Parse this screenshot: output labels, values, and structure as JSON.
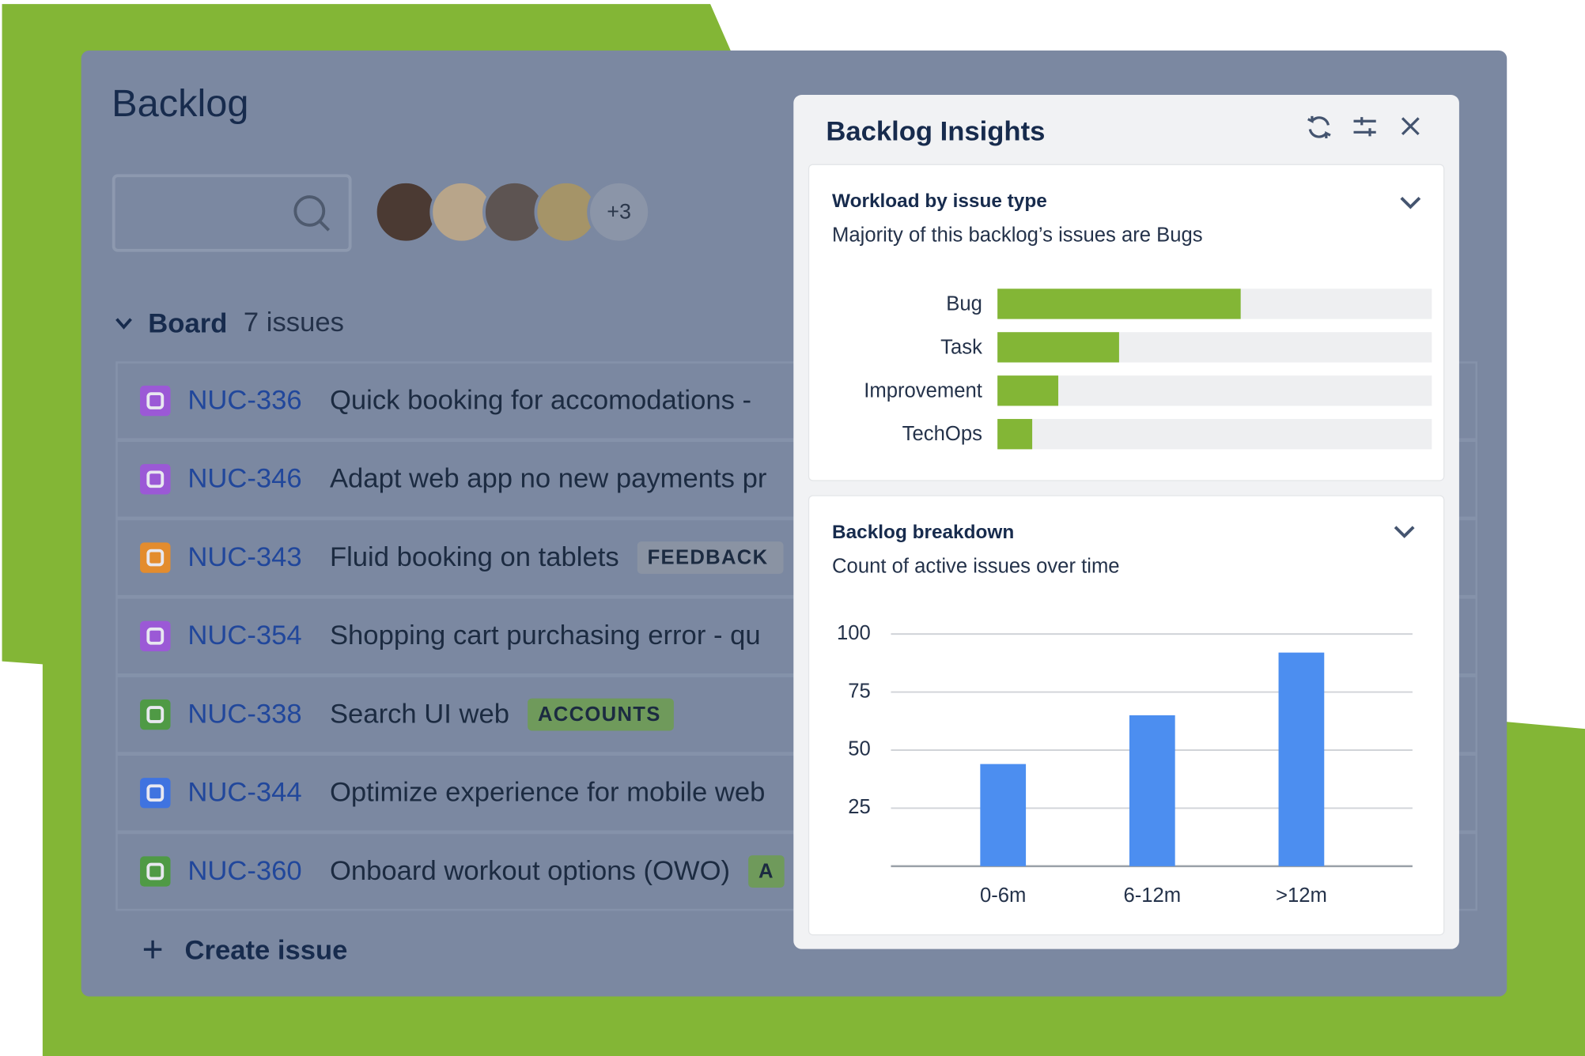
{
  "backlog": {
    "title": "Backlog",
    "avatars_more": "+3",
    "board": {
      "label": "Board",
      "count": "7 issues"
    },
    "issues": [
      {
        "key": "NUC-336",
        "summary": "Quick booking for accomodations -",
        "icon_color": "#9b59d6"
      },
      {
        "key": "NUC-346",
        "summary": "Adapt web app no new payments pr",
        "icon_color": "#9b59d6"
      },
      {
        "key": "NUC-343",
        "summary": "Fluid booking on tablets",
        "tag": "FEEDBACK",
        "tag_color": "#8a93a3",
        "icon_color": "#e38c2e"
      },
      {
        "key": "NUC-354",
        "summary": "Shopping cart purchasing error - qu",
        "icon_color": "#9b59d6"
      },
      {
        "key": "NUC-338",
        "summary": "Search UI web",
        "tag": "ACCOUNTS",
        "tag_color": "#6f9a5b",
        "icon_color": "#4f9a45"
      },
      {
        "key": "NUC-344",
        "summary": "Optimize experience for mobile web",
        "icon_color": "#3f73e0"
      },
      {
        "key": "NUC-360",
        "summary": "Onboard workout options (OWO)",
        "tag": "A",
        "tag_color": "#6f9a5b",
        "icon_color": "#4f9a45"
      }
    ],
    "create": "Create issue"
  },
  "insights": {
    "title": "Backlog Insights"
  },
  "chart_data": [
    {
      "type": "hbar",
      "title": "Workload by issue type",
      "subtitle": "Majority of this backlog’s issues are Bugs",
      "categories": [
        "Bug",
        "Task",
        "Improvement",
        "TechOps"
      ],
      "values": [
        56,
        28,
        14,
        8
      ],
      "xlim": [
        0,
        100
      ],
      "color": "#83b636"
    },
    {
      "type": "bar",
      "title": "Backlog breakdown",
      "subtitle": "Count of active issues over time",
      "categories": [
        "0-6m",
        "6-12m",
        ">12m"
      ],
      "values": [
        44,
        65,
        92
      ],
      "ylim": [
        0,
        100
      ],
      "yticks": [
        25,
        50,
        75,
        100
      ],
      "grid": true,
      "color": "#4c8ef0"
    }
  ]
}
